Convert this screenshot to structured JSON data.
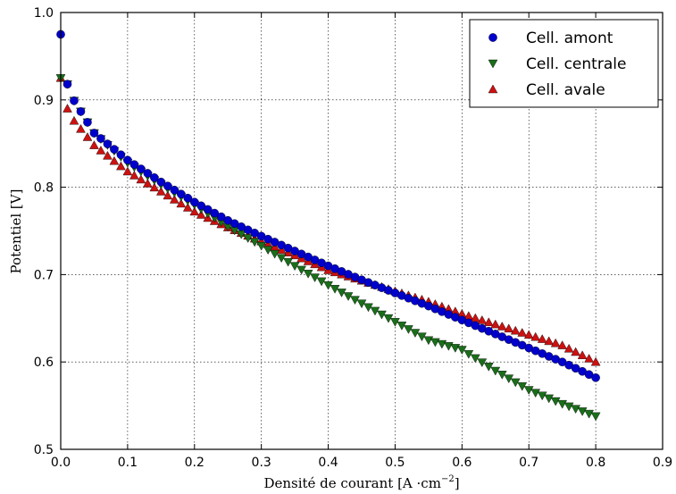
{
  "chart_data": {
    "type": "scatter",
    "xlabel": "Densité de courant [A ·cm",
    "xlabel_exponent": "−2",
    "xlabel_suffix": "]",
    "ylabel": "Potentiel [V]",
    "xlim": [
      0.0,
      0.9
    ],
    "ylim": [
      0.5,
      1.0
    ],
    "xticks": [
      0.0,
      0.1,
      0.2,
      0.3,
      0.4,
      0.5,
      0.6,
      0.7,
      0.8,
      0.9
    ],
    "xtick_labels": [
      "0.0",
      "0.1",
      "0.2",
      "0.3",
      "0.4",
      "0.5",
      "0.6",
      "0.7",
      "0.8",
      "0.9"
    ],
    "yticks": [
      0.5,
      0.6,
      0.7,
      0.8,
      0.9,
      1.0
    ],
    "ytick_labels": [
      "0.5",
      "0.6",
      "0.7",
      "0.8",
      "0.9",
      "1.0"
    ],
    "grid": true,
    "legend_position": "top-right",
    "series": [
      {
        "name": "Cell. amont",
        "marker": "circle",
        "color": "#0000cc",
        "x_start": 0.0,
        "x_step": 0.01,
        "count": 81,
        "points": [
          [
            0.0,
            0.975
          ],
          [
            0.01,
            0.918
          ],
          [
            0.02,
            0.899
          ],
          [
            0.05,
            0.862
          ],
          [
            0.1,
            0.831
          ],
          [
            0.15,
            0.806
          ],
          [
            0.2,
            0.783
          ],
          [
            0.25,
            0.762
          ],
          [
            0.3,
            0.744
          ],
          [
            0.35,
            0.727
          ],
          [
            0.4,
            0.71
          ],
          [
            0.45,
            0.694
          ],
          [
            0.5,
            0.679
          ],
          [
            0.55,
            0.664
          ],
          [
            0.6,
            0.648
          ],
          [
            0.65,
            0.632
          ],
          [
            0.7,
            0.616
          ],
          [
            0.75,
            0.6
          ],
          [
            0.8,
            0.582
          ]
        ]
      },
      {
        "name": "Cell. centrale",
        "marker": "triangle-down",
        "color": "#1a6e1a",
        "x_start": 0.0,
        "x_step": 0.01,
        "count": 81,
        "points": [
          [
            0.0,
            0.925
          ],
          [
            0.01,
            0.918
          ],
          [
            0.02,
            0.899
          ],
          [
            0.05,
            0.862
          ],
          [
            0.1,
            0.828
          ],
          [
            0.15,
            0.803
          ],
          [
            0.2,
            0.78
          ],
          [
            0.25,
            0.755
          ],
          [
            0.3,
            0.733
          ],
          [
            0.35,
            0.71
          ],
          [
            0.4,
            0.688
          ],
          [
            0.45,
            0.667
          ],
          [
            0.5,
            0.646
          ],
          [
            0.55,
            0.625
          ],
          [
            0.6,
            0.614
          ],
          [
            0.65,
            0.59
          ],
          [
            0.7,
            0.568
          ],
          [
            0.75,
            0.552
          ],
          [
            0.8,
            0.538
          ]
        ]
      },
      {
        "name": "Cell. avale",
        "marker": "triangle-up",
        "color": "#cc1111",
        "x_start": 0.0,
        "x_step": 0.01,
        "count": 81,
        "points": [
          [
            0.0,
            0.925
          ],
          [
            0.01,
            0.89
          ],
          [
            0.02,
            0.876
          ],
          [
            0.05,
            0.848
          ],
          [
            0.1,
            0.818
          ],
          [
            0.15,
            0.795
          ],
          [
            0.2,
            0.772
          ],
          [
            0.25,
            0.754
          ],
          [
            0.3,
            0.738
          ],
          [
            0.35,
            0.722
          ],
          [
            0.4,
            0.705
          ],
          [
            0.45,
            0.693
          ],
          [
            0.5,
            0.681
          ],
          [
            0.55,
            0.669
          ],
          [
            0.6,
            0.655
          ],
          [
            0.65,
            0.643
          ],
          [
            0.7,
            0.631
          ],
          [
            0.75,
            0.619
          ],
          [
            0.8,
            0.6
          ]
        ]
      }
    ]
  }
}
